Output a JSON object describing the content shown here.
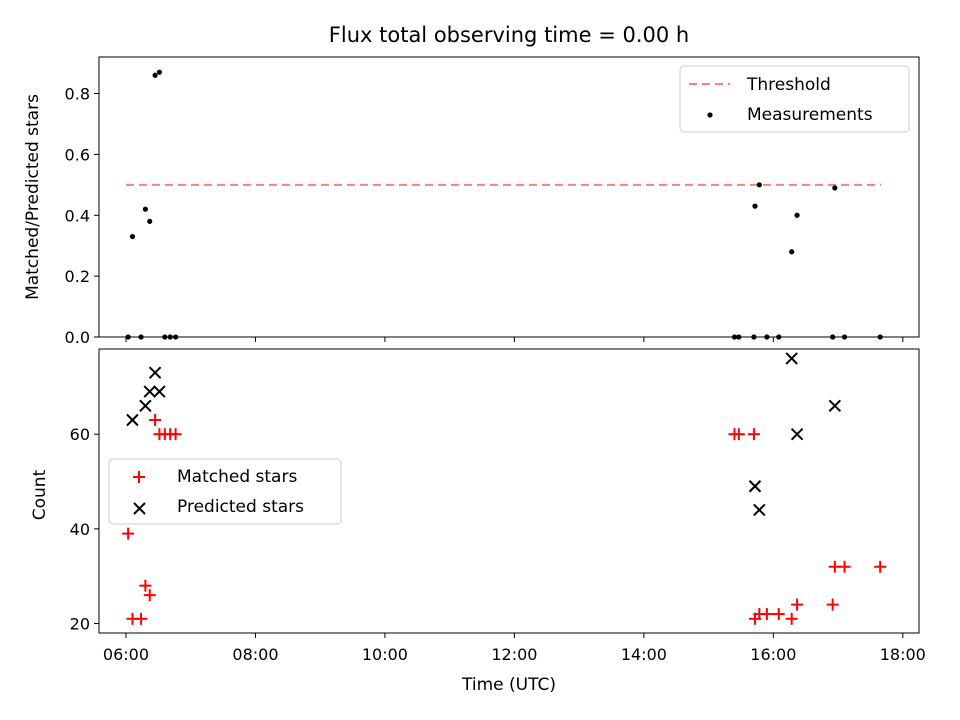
{
  "title": "Flux total observing time = 0.00 h",
  "chart_data": [
    {
      "type": "scatter",
      "ylabel": "Matched/Predicted stars",
      "ylim": [
        0,
        0.92
      ],
      "yticks": [
        0.0,
        0.2,
        0.4,
        0.6,
        0.8
      ],
      "ytick_labels": [
        "0.0",
        "0.2",
        "0.4",
        "0.6",
        "0.8"
      ],
      "legend_placement": "top-right",
      "threshold": {
        "name": "Threshold",
        "y": 0.5,
        "x_range": [
          "06:00",
          "17:40"
        ],
        "color": "#ff7f7f",
        "style": "dashed"
      },
      "series": [
        {
          "name": "Measurements",
          "color": "#000000",
          "marker": "dot",
          "points": [
            {
              "x": "06:02",
              "y": 0.0
            },
            {
              "x": "06:06",
              "y": 0.33
            },
            {
              "x": "06:14",
              "y": 0.0
            },
            {
              "x": "06:18",
              "y": 0.42
            },
            {
              "x": "06:22",
              "y": 0.38
            },
            {
              "x": "06:27",
              "y": 0.86
            },
            {
              "x": "06:31",
              "y": 0.87
            },
            {
              "x": "06:36",
              "y": 0.0
            },
            {
              "x": "06:41",
              "y": 0.0
            },
            {
              "x": "06:46",
              "y": 0.0
            },
            {
              "x": "15:24",
              "y": 0.0
            },
            {
              "x": "15:28",
              "y": 0.0
            },
            {
              "x": "15:42",
              "y": 0.0
            },
            {
              "x": "15:43",
              "y": 0.43
            },
            {
              "x": "15:47",
              "y": 0.5
            },
            {
              "x": "15:54",
              "y": 0.0
            },
            {
              "x": "16:05",
              "y": 0.0
            },
            {
              "x": "16:17",
              "y": 0.28
            },
            {
              "x": "16:22",
              "y": 0.4
            },
            {
              "x": "16:55",
              "y": 0.0
            },
            {
              "x": "16:57",
              "y": 0.49
            },
            {
              "x": "17:06",
              "y": 0.0
            },
            {
              "x": "17:39",
              "y": 0.0
            }
          ]
        }
      ]
    },
    {
      "type": "scatter",
      "xlabel": "Time (UTC)",
      "ylabel": "Count",
      "ylim": [
        18,
        78
      ],
      "yticks": [
        20,
        40,
        60
      ],
      "ytick_labels": [
        "20",
        "40",
        "60"
      ],
      "xticks": [
        "06:00",
        "08:00",
        "10:00",
        "12:00",
        "14:00",
        "16:00",
        "18:00"
      ],
      "xlim": [
        "05:35",
        "18:15"
      ],
      "legend_placement": "center-left",
      "series": [
        {
          "name": "Matched stars",
          "color": "#ff0000",
          "marker": "plus",
          "points": [
            {
              "x": "06:02",
              "y": 39
            },
            {
              "x": "06:06",
              "y": 21
            },
            {
              "x": "06:14",
              "y": 21
            },
            {
              "x": "06:18",
              "y": 28
            },
            {
              "x": "06:22",
              "y": 26
            },
            {
              "x": "06:27",
              "y": 63
            },
            {
              "x": "06:31",
              "y": 60
            },
            {
              "x": "06:36",
              "y": 60
            },
            {
              "x": "06:41",
              "y": 60
            },
            {
              "x": "06:46",
              "y": 60
            },
            {
              "x": "15:24",
              "y": 60
            },
            {
              "x": "15:28",
              "y": 60
            },
            {
              "x": "15:42",
              "y": 60
            },
            {
              "x": "15:43",
              "y": 21
            },
            {
              "x": "15:47",
              "y": 22
            },
            {
              "x": "15:54",
              "y": 22
            },
            {
              "x": "16:05",
              "y": 22
            },
            {
              "x": "16:17",
              "y": 21
            },
            {
              "x": "16:22",
              "y": 24
            },
            {
              "x": "16:55",
              "y": 24
            },
            {
              "x": "16:57",
              "y": 32
            },
            {
              "x": "17:06",
              "y": 32
            },
            {
              "x": "17:39",
              "y": 32
            }
          ]
        },
        {
          "name": "Predicted stars",
          "color": "#000000",
          "marker": "x",
          "points": [
            {
              "x": "06:06",
              "y": 63
            },
            {
              "x": "06:18",
              "y": 66
            },
            {
              "x": "06:22",
              "y": 69
            },
            {
              "x": "06:27",
              "y": 73
            },
            {
              "x": "06:31",
              "y": 69
            },
            {
              "x": "15:43",
              "y": 49
            },
            {
              "x": "15:47",
              "y": 44
            },
            {
              "x": "16:17",
              "y": 76
            },
            {
              "x": "16:22",
              "y": 60
            },
            {
              "x": "16:57",
              "y": 66
            }
          ]
        }
      ]
    }
  ]
}
